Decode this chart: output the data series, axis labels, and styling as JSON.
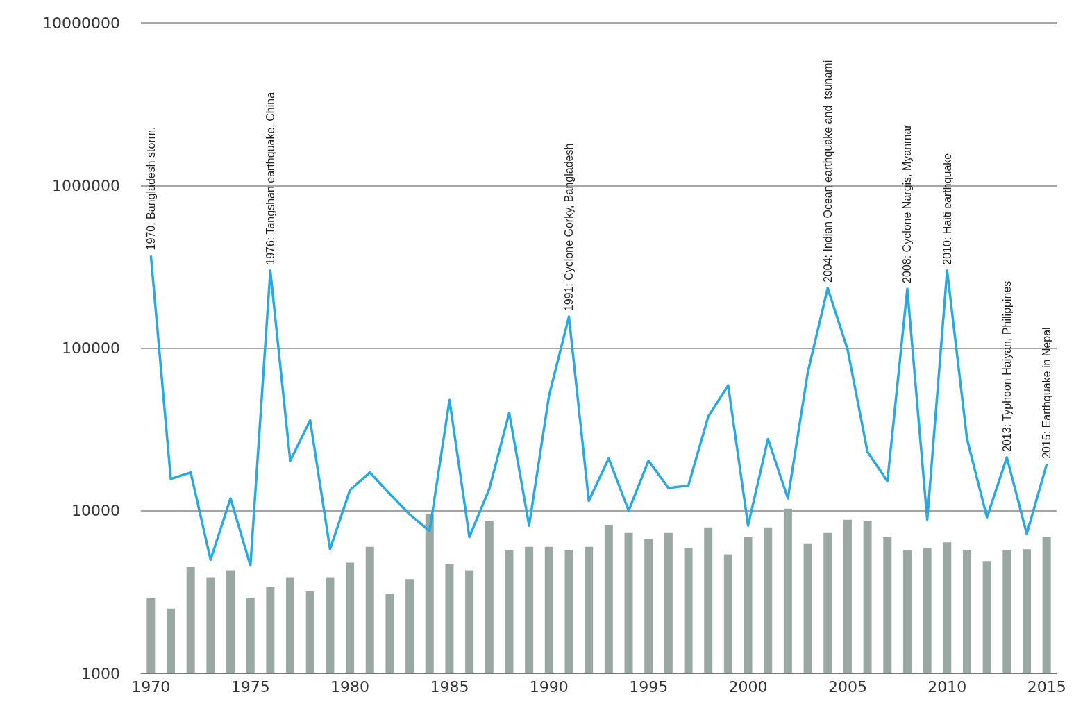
{
  "chart_data": {
    "type": "bar",
    "x": [
      1970,
      1971,
      1972,
      1973,
      1974,
      1975,
      1976,
      1977,
      1978,
      1979,
      1980,
      1981,
      1982,
      1983,
      1984,
      1985,
      1986,
      1987,
      1988,
      1989,
      1990,
      1991,
      1992,
      1993,
      1994,
      1995,
      1996,
      1997,
      1998,
      1999,
      2000,
      2001,
      2002,
      2003,
      2004,
      2005,
      2006,
      2007,
      2008,
      2009,
      2010,
      2011,
      2012,
      2013,
      2014,
      2015
    ],
    "series": [
      {
        "color": "#9aa8a3",
        "values": [
          2900,
          2500,
          4500,
          3900,
          4300,
          2900,
          3400,
          3900,
          3200,
          3900,
          4800,
          6000,
          3100,
          3800,
          9500,
          4700,
          4300,
          8600,
          5700,
          6000,
          6000,
          5700,
          6000,
          8200,
          7300,
          6700,
          7300,
          5900,
          7900,
          5400,
          6900,
          7900,
          10300,
          6300,
          7300,
          8800,
          8600,
          6900,
          5700,
          5900,
          6400,
          5700,
          4900,
          5700,
          5800,
          6900
        ]
      },
      {
        "type": "line",
        "color": "#29a9e0",
        "values": [
          370000,
          15700,
          17200,
          5000,
          11900,
          4600,
          300000,
          20300,
          36000,
          5800,
          13400,
          17200,
          12700,
          9500,
          7500,
          48000,
          6900,
          13600,
          40000,
          8100,
          51000,
          156000,
          11500,
          21000,
          10000,
          20300,
          13800,
          14300,
          38000,
          59000,
          8100,
          27600,
          11900,
          71000,
          234000,
          98000,
          23000,
          15200,
          232000,
          8800,
          300000,
          27600,
          9100,
          21300,
          7200,
          19300
        ]
      }
    ],
    "xlim": [
      1969.5,
      2015.5
    ],
    "xticks": [
      1970,
      1975,
      1980,
      1985,
      1990,
      1995,
      2000,
      2005,
      2010,
      2015
    ],
    "ylim": [
      1000,
      10000000
    ],
    "yticks": [
      1000,
      10000,
      100000,
      1000000,
      10000000
    ],
    "log": "y",
    "grid": "y",
    "annotations": [
      {
        "text": "1970: Bangladesh storm,",
        "x": 1970,
        "y": 370000
      },
      {
        "text": "1976: Tangshan earthquake, China",
        "x": 1976,
        "y": 300000
      },
      {
        "text": "1991: Cyclone Gorky, Bangladesh",
        "x": 1991,
        "y": 156000
      },
      {
        "text": "2004: Indian Ocean earthquake and  tsunami",
        "x": 2004,
        "y": 234000
      },
      {
        "text": "2008: Cyclone Nargis, Myanmar",
        "x": 2008,
        "y": 232000
      },
      {
        "text": "2010: Haiti earthquake",
        "x": 2010,
        "y": 300000
      },
      {
        "text": "2013: Typhoon Haiyan, Philippines",
        "x": 2013,
        "y": 21300
      },
      {
        "text": "2015: Earthquake in Nepal",
        "x": 2015,
        "y": 19300
      }
    ]
  }
}
